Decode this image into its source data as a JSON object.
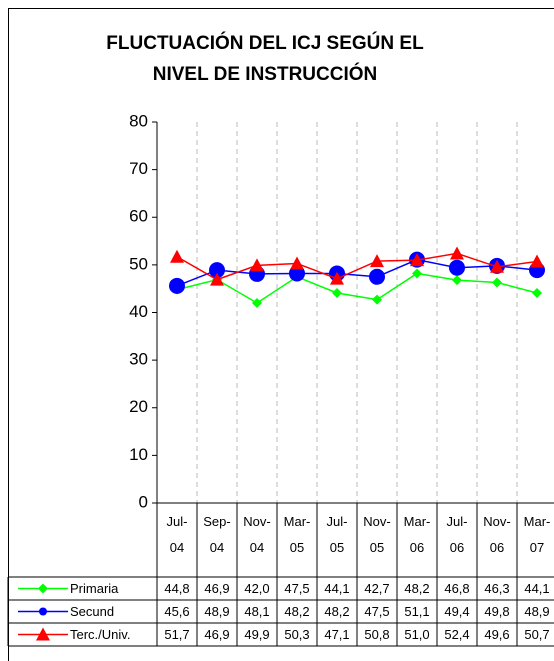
{
  "chart_data": {
    "type": "line",
    "title": "FLUCTUACIÓN DEL ICJ SEGÚN EL NIVEL DE INSTRUCCIÓN",
    "categories": [
      "Jul-04",
      "Sep-04",
      "Nov-04",
      "Mar-05",
      "Jul-05",
      "Nov-05",
      "Mar-06",
      "Jul-06",
      "Nov-06",
      "Mar-07"
    ],
    "series": [
      {
        "name": "Primaria",
        "color": "#00ff00",
        "marker": "diamond",
        "values": [
          44.8,
          46.9,
          42.0,
          47.5,
          44.1,
          42.7,
          48.2,
          46.8,
          46.3,
          44.1
        ],
        "value_labels": [
          "44,8",
          "46,9",
          "42,0",
          "47,5",
          "44,1",
          "42,7",
          "48,2",
          "46,8",
          "46,3",
          "44,1"
        ]
      },
      {
        "name": "Secund",
        "color": "#0000ff",
        "marker": "circle",
        "values": [
          45.6,
          48.9,
          48.1,
          48.2,
          48.2,
          47.5,
          51.1,
          49.4,
          49.8,
          48.9
        ],
        "value_labels": [
          "45,6",
          "48,9",
          "48,1",
          "48,2",
          "48,2",
          "47,5",
          "51,1",
          "49,4",
          "49,8",
          "48,9"
        ]
      },
      {
        "name": "Terc./Univ.",
        "color": "#ff0000",
        "marker": "triangle",
        "values": [
          51.7,
          46.9,
          49.9,
          50.3,
          47.1,
          50.8,
          51.0,
          52.4,
          49.6,
          50.7
        ],
        "value_labels": [
          "51,7",
          "46,9",
          "49,9",
          "50,3",
          "47,1",
          "50,8",
          "51,0",
          "52,4",
          "49,6",
          "50,7"
        ]
      }
    ],
    "ylim": [
      0,
      80
    ],
    "yticks": [
      0,
      10,
      20,
      30,
      40,
      50,
      60,
      70,
      80
    ],
    "grid": true
  }
}
